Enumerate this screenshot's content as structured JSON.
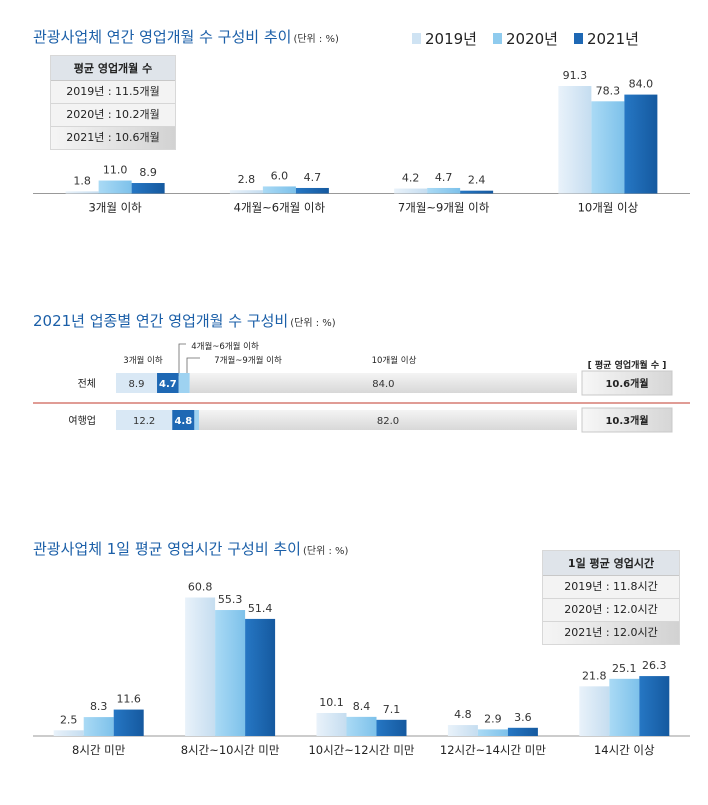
{
  "legend": [
    "2019년",
    "2020년",
    "2021년"
  ],
  "colors": {
    "c2019": "#cfe3f3",
    "c2020": "#8fcbee",
    "c2021": "#1e68b4",
    "redline": "#c0392b",
    "title": "#1b5fa8"
  },
  "section1": {
    "title": "관광사업체 연간 영업개월 수 구성비 추이",
    "unit": "(단위 : %)",
    "infobox": {
      "header": "평균 영업개월 수",
      "rows": [
        "2019년 : 11.5개월",
        "2020년 : 10.2개월",
        "2021년 : 10.6개월"
      ]
    }
  },
  "section2": {
    "title": "2021년 업종별 연간 영업개월 수 구성비",
    "unit": "(단위 : %)",
    "avg_header": "[ 평균 영업개월 수 ]",
    "segment_labels": [
      "3개월 이하",
      "4개월~6개월 이하",
      "7개월~9개월 이하",
      "10개월 이상"
    ]
  },
  "section3": {
    "title": "관광사업체 1일 평균 영업시간 구성비 추이",
    "unit": "(단위 : %)",
    "infobox": {
      "header": "1일 평균 영업시간",
      "rows": [
        "2019년 : 11.8시간",
        "2020년 : 12.0시간",
        "2021년 : 12.0시간"
      ]
    }
  },
  "chart_data": [
    {
      "type": "bar",
      "title": "관광사업체 연간 영업개월 수 구성비 추이",
      "unit": "(단위 : %)",
      "categories": [
        "3개월 이하",
        "4개월~6개월 이하",
        "7개월~9개월 이하",
        "10개월 이상"
      ],
      "series": [
        {
          "name": "2019년",
          "values": [
            1.8,
            2.8,
            4.2,
            91.3
          ]
        },
        {
          "name": "2020년",
          "values": [
            11.0,
            6.0,
            4.7,
            78.3
          ]
        },
        {
          "name": "2021년",
          "values": [
            8.9,
            4.7,
            2.4,
            84.0
          ]
        }
      ],
      "ylim": [
        0,
        100
      ]
    },
    {
      "type": "bar",
      "stacked": true,
      "orientation": "horizontal",
      "title": "2021년 업종별 연간 영업개월 수 구성비",
      "unit": "(단위 : %)",
      "categories": [
        "전체",
        "여행업"
      ],
      "series": [
        {
          "name": "3개월 이하",
          "values": [
            8.9,
            12.2
          ]
        },
        {
          "name": "4개월~6개월 이하",
          "values": [
            4.7,
            4.8
          ]
        },
        {
          "name": "7개월~9개월 이하",
          "values": [
            2.4,
            1.0
          ]
        },
        {
          "name": "10개월 이상",
          "values": [
            84.0,
            82.0
          ]
        }
      ],
      "averages": [
        "10.6개월",
        "10.3개월"
      ]
    },
    {
      "type": "bar",
      "title": "관광사업체 1일 평균 영업시간 구성비 추이",
      "unit": "(단위 : %)",
      "categories": [
        "8시간 미만",
        "8시간~10시간 미만",
        "10시간~12시간 미만",
        "12시간~14시간 미만",
        "14시간 이상"
      ],
      "series": [
        {
          "name": "2019년",
          "values": [
            2.5,
            60.8,
            10.1,
            4.8,
            21.8
          ]
        },
        {
          "name": "2020년",
          "values": [
            8.3,
            55.3,
            8.4,
            2.9,
            25.1
          ]
        },
        {
          "name": "2021년",
          "values": [
            11.6,
            51.4,
            7.1,
            3.6,
            26.3
          ]
        }
      ],
      "ylim": [
        0,
        70
      ]
    }
  ]
}
